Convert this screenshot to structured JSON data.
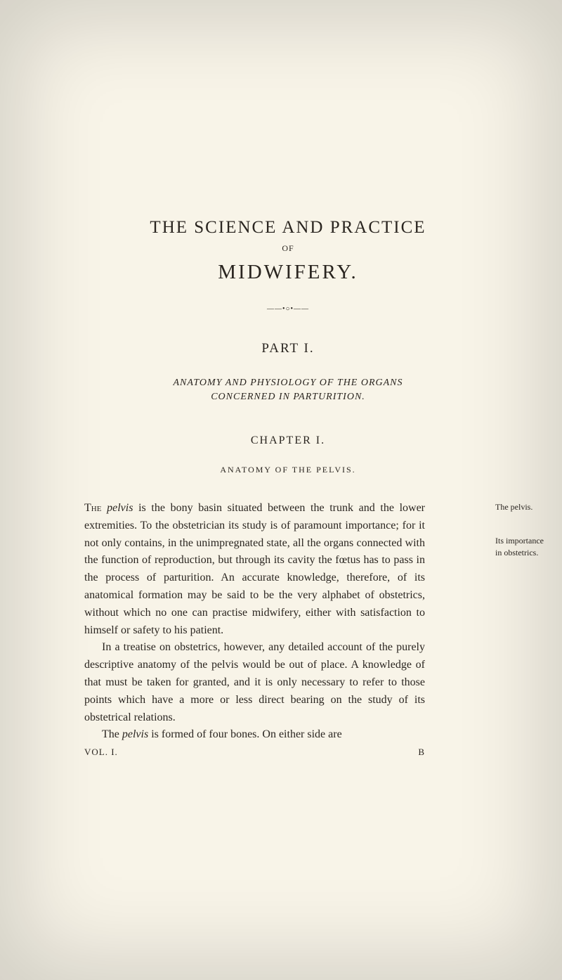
{
  "title": {
    "main": "THE SCIENCE AND PRACTICE",
    "of": "OF",
    "midwifery": "MIDWIFERY."
  },
  "divider": "——•○•——",
  "part": "PART I.",
  "section": {
    "line1": "ANATOMY AND PHYSIOLOGY OF THE ORGANS",
    "line2": "CONCERNED IN PARTURITION."
  },
  "chapter": {
    "title": "CHAPTER I.",
    "subtitle": "ANATOMY OF THE PELVIS."
  },
  "body": {
    "para1_prefix": "The ",
    "para1_italic1": "pelvis",
    "para1_text1": " is the bony basin situated between the trunk and the lower extremities. To the obstetrician its study is of paramount importance; for it not only contains, in the unimpregnated state, all the organs connected with the function of reproduction, but through its cavity the fœtus has to pass in the process of parturition. An accurate knowledge, therefore, of its anatomical formation may be said to be the very alphabet of obstetrics, without which no one can practise midwifery, either with satisfaction to himself or safety to his patient.",
    "para2": "In a treatise on obstetrics, however, any detailed account of the purely descriptive anatomy of the pelvis would be out of place. A knowledge of that must be taken for granted, and it is only necessary to refer to those points which have a more or less direct bearing on the study of its obstetrical relations.",
    "para3_prefix": "The ",
    "para3_italic": "pelvis",
    "para3_text": " is formed of four bones. On either side are"
  },
  "margin_notes": {
    "note1": "The pelvis.",
    "note2": "Its importance in obstetrics."
  },
  "footer": {
    "left": "VOL. I.",
    "right": "B"
  },
  "colors": {
    "background": "#f8f4e8",
    "text": "#2a2520"
  }
}
